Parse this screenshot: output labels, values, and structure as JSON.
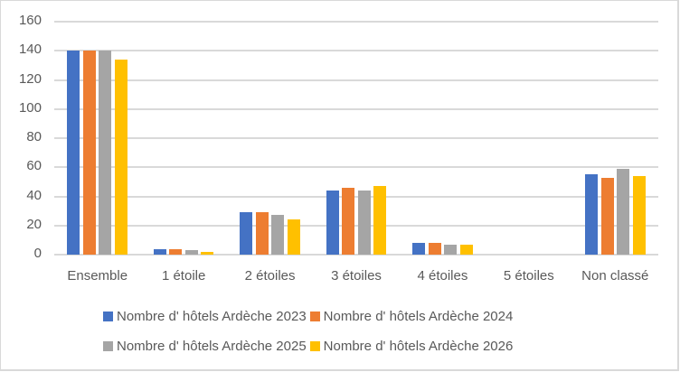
{
  "chart_data": {
    "type": "bar",
    "title": "",
    "xlabel": "",
    "ylabel": "",
    "ylim": [
      0,
      160
    ],
    "yticks": [
      "0",
      "20",
      "40",
      "60",
      "80",
      "100",
      "120",
      "140",
      "160"
    ],
    "grid": true,
    "legend_position": "bottom",
    "categories": [
      "Ensemble",
      "1 étoile",
      "2 étoiles",
      "3 étoiles",
      "4 étoiles",
      "5 étoiles",
      "Non classé"
    ],
    "series": [
      {
        "name": "Nombre d' hôtels Ardèche  2023",
        "color": "#4472c4",
        "values": [
          140,
          4,
          29,
          44,
          8,
          0,
          55
        ]
      },
      {
        "name": "Nombre d' hôtels Ardèche  2024",
        "color": "#ed7d31",
        "values": [
          140,
          4,
          29,
          46,
          8,
          0,
          53
        ]
      },
      {
        "name": "Nombre d' hôtels Ardèche  2025",
        "color": "#a5a5a5",
        "values": [
          140,
          3,
          27,
          44,
          7,
          0,
          59
        ]
      },
      {
        "name": "Nombre d' hôtels Ardèche  2026",
        "color": "#ffc000",
        "values": [
          134,
          2,
          24,
          47,
          7,
          0,
          54
        ]
      }
    ]
  }
}
